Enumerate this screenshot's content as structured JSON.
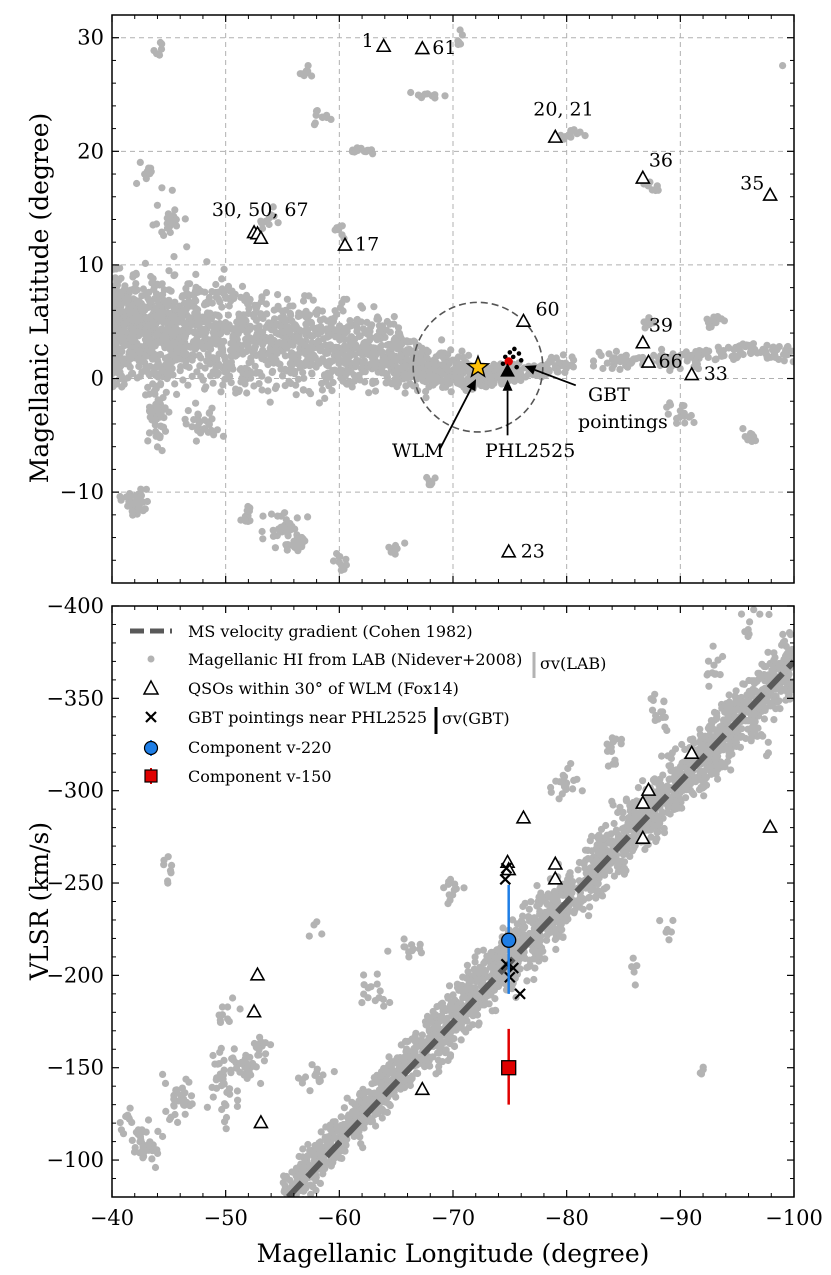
{
  "chart_data": [
    {
      "type": "scatter",
      "panel": "top",
      "xlabel": "",
      "ylabel": "Magellanic Latitude (degree)",
      "xlim": [
        -40,
        -100
      ],
      "ylim": [
        -18,
        32
      ],
      "x_ticks": [
        -40,
        -50,
        -60,
        -70,
        -80,
        -90,
        -100
      ],
      "y_ticks": [
        -10,
        0,
        10,
        20,
        30
      ],
      "y_tick_labels": [
        "−10",
        "0",
        "10",
        "20",
        "30"
      ],
      "grid": true,
      "colors": {
        "lab": "#b3b3b3",
        "wlm": "#ffc107",
        "phl": "#000000",
        "gbt": "#000000",
        "red": "#e00000",
        "circle": "#555555"
      },
      "wlm": {
        "x": -72.2,
        "y": 1.0
      },
      "phl2525": {
        "x": -74.8,
        "y": 0.6
      },
      "search_circle": {
        "x": -72.2,
        "y": 1.0,
        "radius_deg": 5.7
      },
      "gbt_pointings": [
        {
          "x": -74.6,
          "y": 1.9
        },
        {
          "x": -75.0,
          "y": 2.3
        },
        {
          "x": -75.4,
          "y": 2.6
        },
        {
          "x": -75.8,
          "y": 2.2
        },
        {
          "x": -76.0,
          "y": 1.6
        },
        {
          "x": -75.6,
          "y": 1.0
        },
        {
          "x": -74.4,
          "y": 1.3
        },
        {
          "x": -74.9,
          "y": 1.5
        },
        {
          "x": -75.3,
          "y": 1.9
        }
      ],
      "red_marker": {
        "x": -74.9,
        "y": 1.5
      },
      "qsos": [
        {
          "x": -63.9,
          "y": 29.2,
          "label": "1"
        },
        {
          "x": -67.3,
          "y": 29.0,
          "label": "61"
        },
        {
          "x": -79.0,
          "y": 21.2,
          "label": "20, 21"
        },
        {
          "x": -86.7,
          "y": 17.6,
          "label": "36"
        },
        {
          "x": -97.9,
          "y": 16.1,
          "label": "35"
        },
        {
          "x": -52.5,
          "y": 12.8,
          "label": ""
        },
        {
          "x": -52.8,
          "y": 12.7,
          "label": ""
        },
        {
          "x": -53.1,
          "y": 12.3,
          "label": "30, 50, 67"
        },
        {
          "x": -60.5,
          "y": 11.7,
          "label": "17"
        },
        {
          "x": -76.2,
          "y": 5.0,
          "label": "60"
        },
        {
          "x": -86.7,
          "y": 3.1,
          "label": "39"
        },
        {
          "x": -87.2,
          "y": 1.4,
          "label": "66"
        },
        {
          "x": -91.0,
          "y": 0.3,
          "label": "33"
        },
        {
          "x": -74.9,
          "y": -15.3,
          "label": "23"
        }
      ],
      "annotations": {
        "wlm": "WLM",
        "phl": "PHL2525",
        "gbt_line1": "GBT",
        "gbt_line2": "pointings"
      }
    },
    {
      "type": "scatter",
      "panel": "bottom",
      "xlabel": "Magellanic Longitude (degree)",
      "ylabel": "VLSR (km/s)",
      "xlim": [
        -40,
        -100
      ],
      "ylim": [
        -80,
        -400
      ],
      "x_ticks": [
        -40,
        -50,
        -60,
        -70,
        -80,
        -90,
        -100
      ],
      "x_tick_labels": [
        "−40",
        "−50",
        "−60",
        "−70",
        "−80",
        "−90",
        "−100"
      ],
      "y_ticks": [
        -100,
        -150,
        -200,
        -250,
        -300,
        -350,
        -400
      ],
      "y_tick_labels": [
        "−100",
        "−150",
        "−200",
        "−250",
        "−300",
        "−350",
        "−400"
      ],
      "grid": false,
      "legend_position": "top-left",
      "colors": {
        "gradient": "#595959",
        "lab": "#b3b3b3",
        "blue": "#1e7ee6",
        "red": "#e00000"
      },
      "gradient_line": [
        {
          "x": -55.5,
          "y": -80
        },
        {
          "x": -100,
          "y": -370
        }
      ],
      "lab_error_bar": {
        "halfwidth_kms": 8
      },
      "gbt_error_bar": {
        "halfwidth_kms": 12
      },
      "qsos": [
        {
          "x": -52.5,
          "y": -180
        },
        {
          "x": -52.8,
          "y": -200
        },
        {
          "x": -53.1,
          "y": -120
        },
        {
          "x": -67.3,
          "y": -138
        },
        {
          "x": -74.8,
          "y": -261
        },
        {
          "x": -74.9,
          "y": -257
        },
        {
          "x": -76.2,
          "y": -285
        },
        {
          "x": -79.0,
          "y": -260
        },
        {
          "x": -79.0,
          "y": -252
        },
        {
          "x": -86.7,
          "y": -293
        },
        {
          "x": -86.7,
          "y": -274
        },
        {
          "x": -87.2,
          "y": -300
        },
        {
          "x": -91.0,
          "y": -320
        },
        {
          "x": -97.9,
          "y": -280
        }
      ],
      "gbt_pointings": [
        {
          "x": -74.6,
          "y": -252
        },
        {
          "x": -74.7,
          "y": -258
        },
        {
          "x": -74.7,
          "y": -206
        },
        {
          "x": -75.3,
          "y": -204
        },
        {
          "x": -75.0,
          "y": -199
        },
        {
          "x": -75.9,
          "y": -190
        }
      ],
      "components": [
        {
          "name": "Component v-220",
          "x": -74.9,
          "y": -219,
          "err_low": -190,
          "err_high": -249,
          "color": "#1e7ee6",
          "marker": "circle"
        },
        {
          "name": "Component v-150",
          "x": -74.9,
          "y": -150,
          "err_low": -130,
          "err_high": -171,
          "color": "#e00000",
          "marker": "square"
        }
      ],
      "legend": {
        "gradient": "MS velocity gradient (Cohen 1982)",
        "lab": "Magellanic HI from LAB (Nidever+2008)",
        "sigma_lab": "σv(LAB)",
        "qsos": "QSOs within 30° of WLM (Fox14)",
        "gbt": "GBT pointings near PHL2525",
        "sigma_gbt": "σv(GBT)",
        "comp220": "Component v-220",
        "comp150": "Component v-150"
      }
    }
  ]
}
